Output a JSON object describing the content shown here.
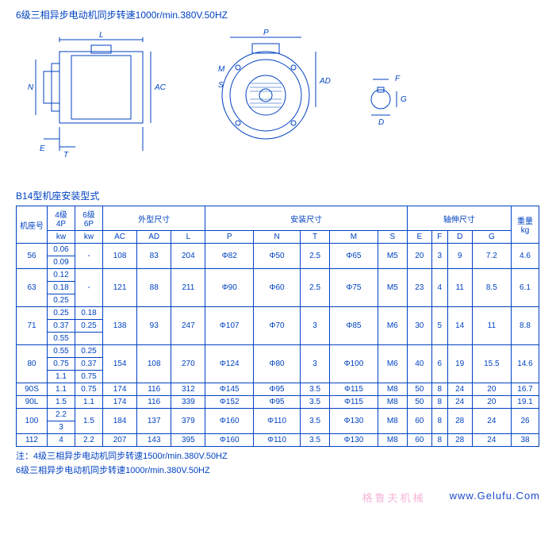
{
  "header": "6级三相异步电动机同步转速1000r/min.380V.50HZ",
  "subheader": "B14型机座安装型式",
  "diagram_labels": {
    "L": "L",
    "N": "N",
    "E": "E",
    "T": "T",
    "AC": "AC",
    "P": "P",
    "M": "M",
    "S": "S",
    "AD": "AD",
    "F": "F",
    "D": "D",
    "G": "G"
  },
  "table": {
    "colgroups": [
      {
        "label": "机座号",
        "span": 1
      },
      {
        "label": "4级\n4P",
        "span": 1
      },
      {
        "label": "6级\n6P",
        "span": 1
      },
      {
        "label": "外型尺寸",
        "span": 3
      },
      {
        "label": "安装尺寸",
        "span": 5
      },
      {
        "label": "轴伸尺寸",
        "span": 4
      },
      {
        "label": "重量\nkg",
        "span": 1
      }
    ],
    "subcols": [
      "",
      "kw",
      "kw",
      "AC",
      "AD",
      "L",
      "P",
      "N",
      "T",
      "M",
      "S",
      "E",
      "F",
      "D",
      "G",
      ""
    ],
    "rows": [
      {
        "frame": "56",
        "kw4": [
          "0.06",
          "0.09"
        ],
        "kw6": [
          "-"
        ],
        "vals": [
          "108",
          "83",
          "204",
          "Φ82",
          "Φ50",
          "2.5",
          "Φ65",
          "M5",
          "20",
          "3",
          "9",
          "7.2",
          "4.6"
        ]
      },
      {
        "frame": "63",
        "kw4": [
          "0.12",
          "0.18",
          "0.25"
        ],
        "kw6": [
          "-"
        ],
        "vals": [
          "121",
          "88",
          "211",
          "Φ90",
          "Φ60",
          "2.5",
          "Φ75",
          "M5",
          "23",
          "4",
          "11",
          "8.5",
          "6.1"
        ]
      },
      {
        "frame": "71",
        "kw4": [
          "0.25",
          "0.37",
          "0.55"
        ],
        "kw6": [
          "0.18",
          "0.25",
          ""
        ],
        "vals": [
          "138",
          "93",
          "247",
          "Φ107",
          "Φ70",
          "3",
          "Φ85",
          "M6",
          "30",
          "5",
          "14",
          "11",
          "8.8"
        ]
      },
      {
        "frame": "80",
        "kw4": [
          "0.55",
          "0.75",
          "1.1"
        ],
        "kw6": [
          "0.25",
          "0.37",
          "0.75"
        ],
        "vals": [
          "154",
          "108",
          "270",
          "Φ124",
          "Φ80",
          "3",
          "Φ100",
          "M6",
          "40",
          "6",
          "19",
          "15.5",
          "14.6"
        ]
      },
      {
        "frame": "90S",
        "kw4": [
          "1.1"
        ],
        "kw6": [
          "0.75"
        ],
        "vals": [
          "174",
          "116",
          "312",
          "Φ145",
          "Φ95",
          "3.5",
          "Φ115",
          "M8",
          "50",
          "8",
          "24",
          "20",
          "16.7"
        ]
      },
      {
        "frame": "90L",
        "kw4": [
          "1.5"
        ],
        "kw6": [
          "1.1"
        ],
        "vals": [
          "174",
          "116",
          "339",
          "Φ152",
          "Φ95",
          "3.5",
          "Φ115",
          "M8",
          "50",
          "8",
          "24",
          "20",
          "19.1"
        ]
      },
      {
        "frame": "100",
        "kw4": [
          "2.2",
          "3"
        ],
        "kw6": [
          "1.5"
        ],
        "vals": [
          "184",
          "137",
          "379",
          "Φ160",
          "Φ110",
          "3.5",
          "Φ130",
          "M8",
          "60",
          "8",
          "28",
          "24",
          "26"
        ]
      },
      {
        "frame": "112",
        "kw4": [
          "4"
        ],
        "kw6": [
          "2.2"
        ],
        "vals": [
          "207",
          "143",
          "395",
          "Φ160",
          "Φ110",
          "3.5",
          "Φ130",
          "M8",
          "60",
          "8",
          "28",
          "24",
          "38"
        ]
      }
    ]
  },
  "notes": [
    "注：4级三相异步电动机同步转速1500r/min.380V.50HZ",
    "6级三相异步电动机同步转速1000r/min.380V.50HZ"
  ],
  "brand": "格鲁夫机械",
  "url": "www.Gelufu.Com",
  "colors": {
    "line": "#0042c2",
    "brand": "#f5b5d8"
  }
}
